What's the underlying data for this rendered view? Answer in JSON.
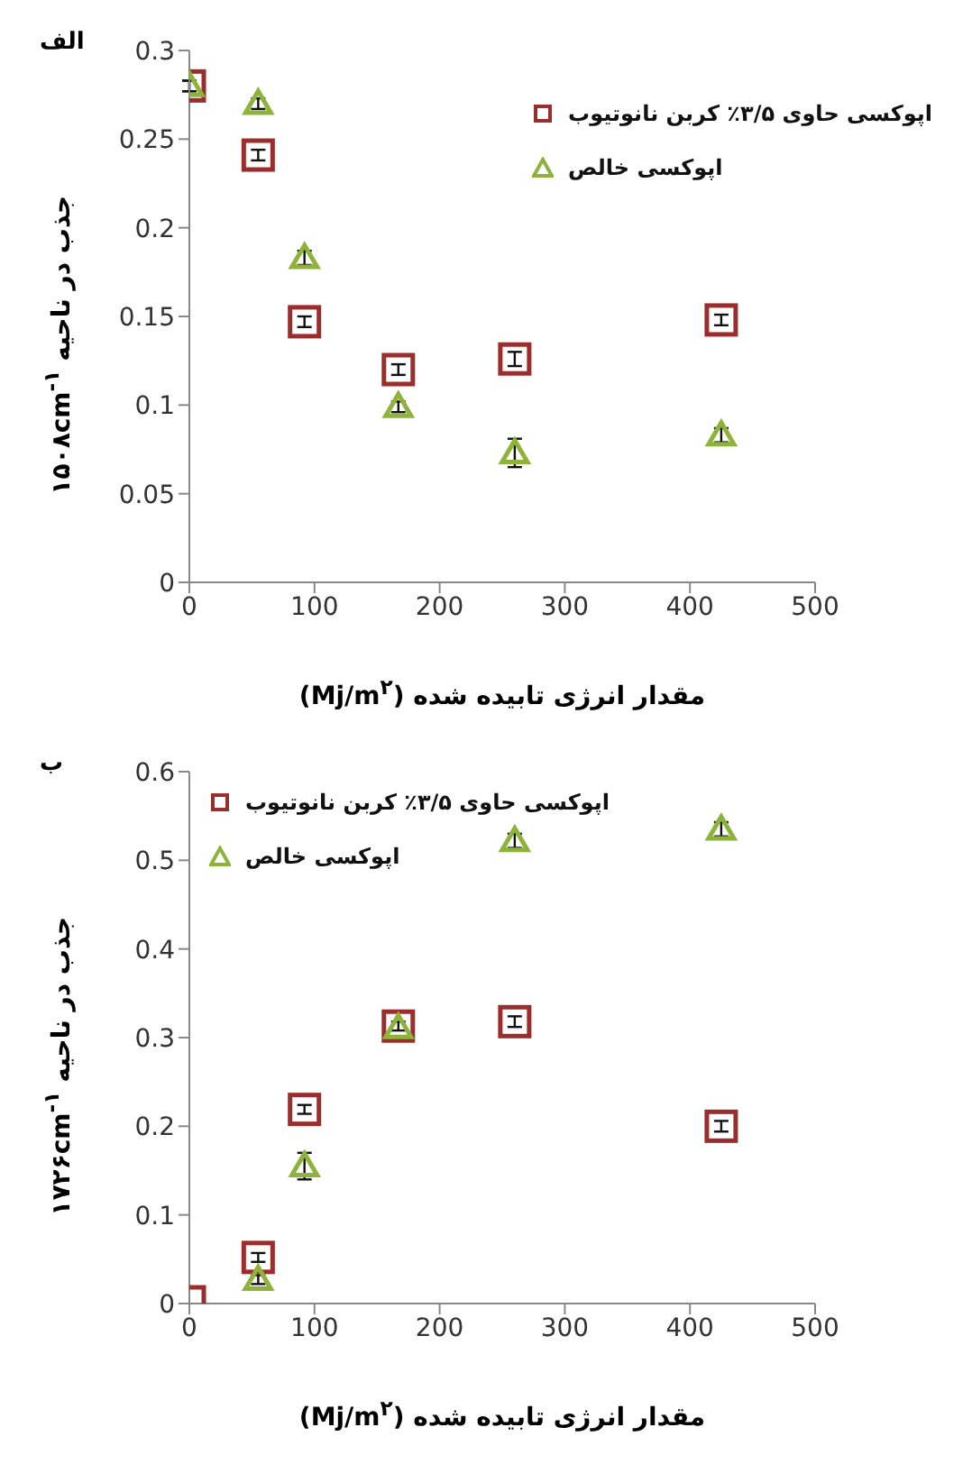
{
  "chart_data": [
    {
      "type": "scatter",
      "title": "الف",
      "xlabel": "مقدار انرژی تابیده شده (Mj/m$^{۲}$)",
      "ylabel": "جذب در ناحیه ۱۵۰۸cm$^{-۱}$",
      "xlim": [
        0,
        500
      ],
      "xticks": [
        0,
        100,
        200,
        300,
        400,
        500
      ],
      "ylim": [
        0,
        0.3
      ],
      "yticks": [
        0,
        0.05,
        0.1,
        0.15,
        0.2,
        0.25,
        0.3
      ],
      "grid": false,
      "legend": "top right",
      "x": [
        0,
        55,
        92,
        167,
        260,
        425
      ],
      "series": [
        {
          "name": "اپوکسی حاوی ۳/۵٪ کربن نانوتیوب",
          "color": "#9b2d2d",
          "marker": "square",
          "values": [
            0.28,
            0.241,
            0.147,
            0.12,
            0.126,
            0.148
          ],
          "errors": [
            0.003,
            0.003,
            0.003,
            0.003,
            0.004,
            0.003
          ]
        },
        {
          "name": "اپوکسی خالص",
          "color": "#8db33a",
          "marker": "triangle",
          "values": [
            0.28,
            0.27,
            0.183,
            0.099,
            0.073,
            0.083
          ],
          "errors": [
            0.003,
            0.003,
            0.004,
            0.003,
            0.008,
            0.004
          ]
        }
      ]
    },
    {
      "type": "scatter",
      "title": "ب",
      "xlabel": "مقدار انرژی تابیده شده (Mj/m$^{۲}$)",
      "ylabel": "جذب در ناحیه ۱۷۲۶cm$^{-۱}$",
      "xlim": [
        0,
        500
      ],
      "xticks": [
        0,
        100,
        200,
        300,
        400,
        500
      ],
      "ylim": [
        0,
        0.6
      ],
      "yticks": [
        0,
        0.1,
        0.2,
        0.3,
        0.4,
        0.5,
        0.6
      ],
      "grid": false,
      "legend": "top left",
      "x": [
        0,
        55,
        92,
        167,
        260,
        425
      ],
      "series": [
        {
          "name": "اپوکسی حاوی ۳/۵٪ کربن نانوتیوب",
          "color": "#9b2d2d",
          "marker": "square",
          "values": [
            0.002,
            0.052,
            0.219,
            0.313,
            0.318,
            0.2
          ],
          "errors": [
            null,
            0.005,
            0.005,
            0.005,
            0.006,
            0.006
          ]
        },
        {
          "name": "اپوکسی خالص",
          "color": "#8db33a",
          "marker": "triangle",
          "values": [
            null,
            0.027,
            0.155,
            0.311,
            0.522,
            0.535
          ],
          "errors": [
            null,
            0.005,
            0.015,
            null,
            0.008,
            0.008
          ]
        }
      ]
    }
  ]
}
